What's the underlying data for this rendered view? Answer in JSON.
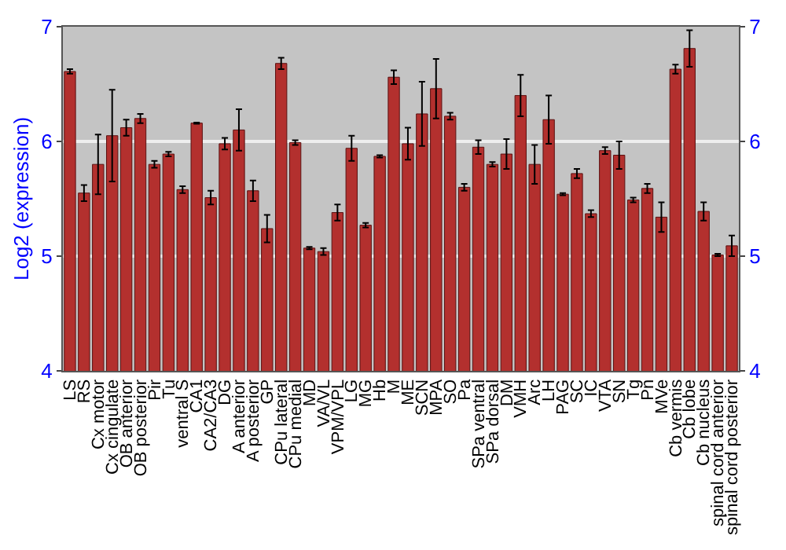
{
  "chart_data": {
    "type": "bar",
    "ylabel": "Log2 (expression)",
    "categories": [
      "LS",
      "RS",
      "Cx motor",
      "Cx cingulate",
      "OB anterior",
      "OB posterior",
      "Pir",
      "Tu",
      "ventral S",
      "CA1",
      "CA2/CA3",
      "DG",
      "A anterior",
      "A posterior",
      "GP",
      "CPu lateral",
      "CPu medial",
      "MD",
      "VA/VL",
      "VPM/VPL",
      "LG",
      "MG",
      "Hb",
      "M",
      "ME",
      "SCN",
      "MPA",
      "SO",
      "Pa",
      "SPa ventral",
      "SPa dorsal",
      "DM",
      "VMH",
      "Arc",
      "LH",
      "PAG",
      "SC",
      "IC",
      "VTA",
      "SN",
      "Tg",
      "Pn",
      "MVe",
      "Cb vermis",
      "Cb lobe",
      "Cb nucleus",
      "spinal cord anterior",
      "spinal cord posterior"
    ],
    "values": [
      6.61,
      5.55,
      5.8,
      6.05,
      6.12,
      6.2,
      5.8,
      5.89,
      5.58,
      6.16,
      5.51,
      5.98,
      6.1,
      5.57,
      5.24,
      6.68,
      5.99,
      5.07,
      5.04,
      5.38,
      5.94,
      5.27,
      5.87,
      6.56,
      5.98,
      6.24,
      6.46,
      6.22,
      5.6,
      5.95,
      5.8,
      5.89,
      6.4,
      5.8,
      6.19,
      5.54,
      5.72,
      5.37,
      5.92,
      5.88,
      5.49,
      5.59,
      5.34,
      6.63,
      6.81,
      5.39,
      5.01,
      5.09
    ],
    "errors": [
      0.02,
      0.07,
      0.26,
      0.4,
      0.07,
      0.04,
      0.03,
      0.02,
      0.03,
      0.005,
      0.06,
      0.05,
      0.18,
      0.09,
      0.12,
      0.05,
      0.02,
      0.01,
      0.03,
      0.07,
      0.11,
      0.02,
      0.01,
      0.06,
      0.14,
      0.28,
      0.26,
      0.03,
      0.03,
      0.06,
      0.02,
      0.13,
      0.18,
      0.17,
      0.21,
      0.01,
      0.04,
      0.03,
      0.03,
      0.12,
      0.02,
      0.04,
      0.13,
      0.04,
      0.16,
      0.08,
      0.01,
      0.09
    ],
    "color": "#b3302e",
    "ylim": [
      4,
      7
    ],
    "yticks": [
      4,
      5,
      6,
      7
    ],
    "y2lim": [
      4,
      7
    ],
    "y2ticks": [
      4,
      5,
      6,
      7
    ],
    "grid": "y"
  }
}
